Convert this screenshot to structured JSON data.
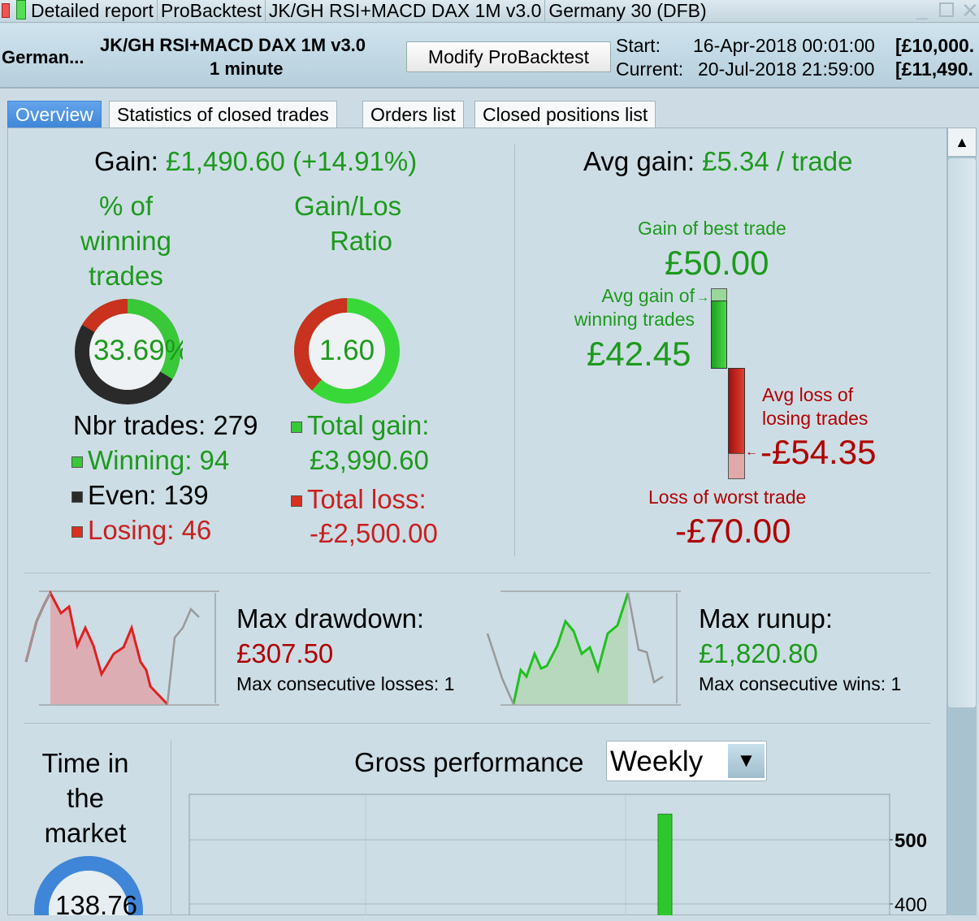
{
  "titlebar": {
    "segments": [
      "Detailed report",
      "ProBacktest",
      "JK/GH RSI+MACD DAX 1M v3.0",
      "Germany 30 (DFB)"
    ]
  },
  "header": {
    "instrument": "German...",
    "system_name": "JK/GH RSI+MACD DAX 1M v3.0",
    "timeframe": "1 minute",
    "modify_label": "Modify ProBacktest",
    "start_label": "Start:",
    "start_value": "16-Apr-2018 00:01:00",
    "start_capital": "[£10,000.",
    "current_label": "Current:",
    "current_value": "20-Jul-2018 21:59:00",
    "current_capital": "[£11,490."
  },
  "tabs": [
    "Overview",
    "Statistics of closed trades",
    "Orders list",
    "Closed positions list"
  ],
  "overview": {
    "gain_label": "Gain:",
    "gain_value": "£1,490.60",
    "gain_pct": "(+14.91%)",
    "pct_winning_label": [
      "% of",
      "winning",
      "trades"
    ],
    "pct_winning_value": "33.69%",
    "gl_ratio_label": [
      "Gain/Los",
      "Ratio"
    ],
    "gl_ratio_value": "1.60",
    "nbr_trades": "Nbr trades: 279",
    "winning": "Winning: 94",
    "even": "Even: 139",
    "losing": "Losing: 46",
    "total_gain_label": "Total gain:",
    "total_gain": "£3,990.60",
    "total_loss_label": "Total loss:",
    "total_loss": "-£2,500.00",
    "avg_gain_label": "Avg gain:",
    "avg_gain_value": "£5.34 / trade",
    "best_label": "Gain of best trade",
    "best_value": "£50.00",
    "avg_win_label": [
      "Avg gain of",
      "winning trades"
    ],
    "avg_win_value": "£42.45",
    "avg_loss_label": [
      "Avg loss of",
      "losing trades"
    ],
    "avg_loss_value": "-£54.35",
    "worst_label": "Loss of worst trade",
    "worst_value": "-£70.00",
    "drawdown_label": "Max drawdown:",
    "drawdown_value": "£307.50",
    "max_cons_losses": "Max consecutive losses: 1",
    "runup_label": "Max runup:",
    "runup_value": "£1,820.80",
    "max_cons_wins": "Max consecutive wins: 1",
    "time_in_market_label": [
      "Time in",
      "the",
      "market"
    ],
    "time_in_market_value": "138.76",
    "gross_perf_label": "Gross performance",
    "period_select": "Weekly"
  },
  "colors": {
    "green": "#1c9a1c",
    "red": "#b00000",
    "accent": "#3f86d8"
  },
  "chart_data": {
    "type": "bar",
    "title": "Gross performance",
    "y_ticks": [
      400,
      500
    ],
    "values": [
      540
    ],
    "grid": true
  }
}
